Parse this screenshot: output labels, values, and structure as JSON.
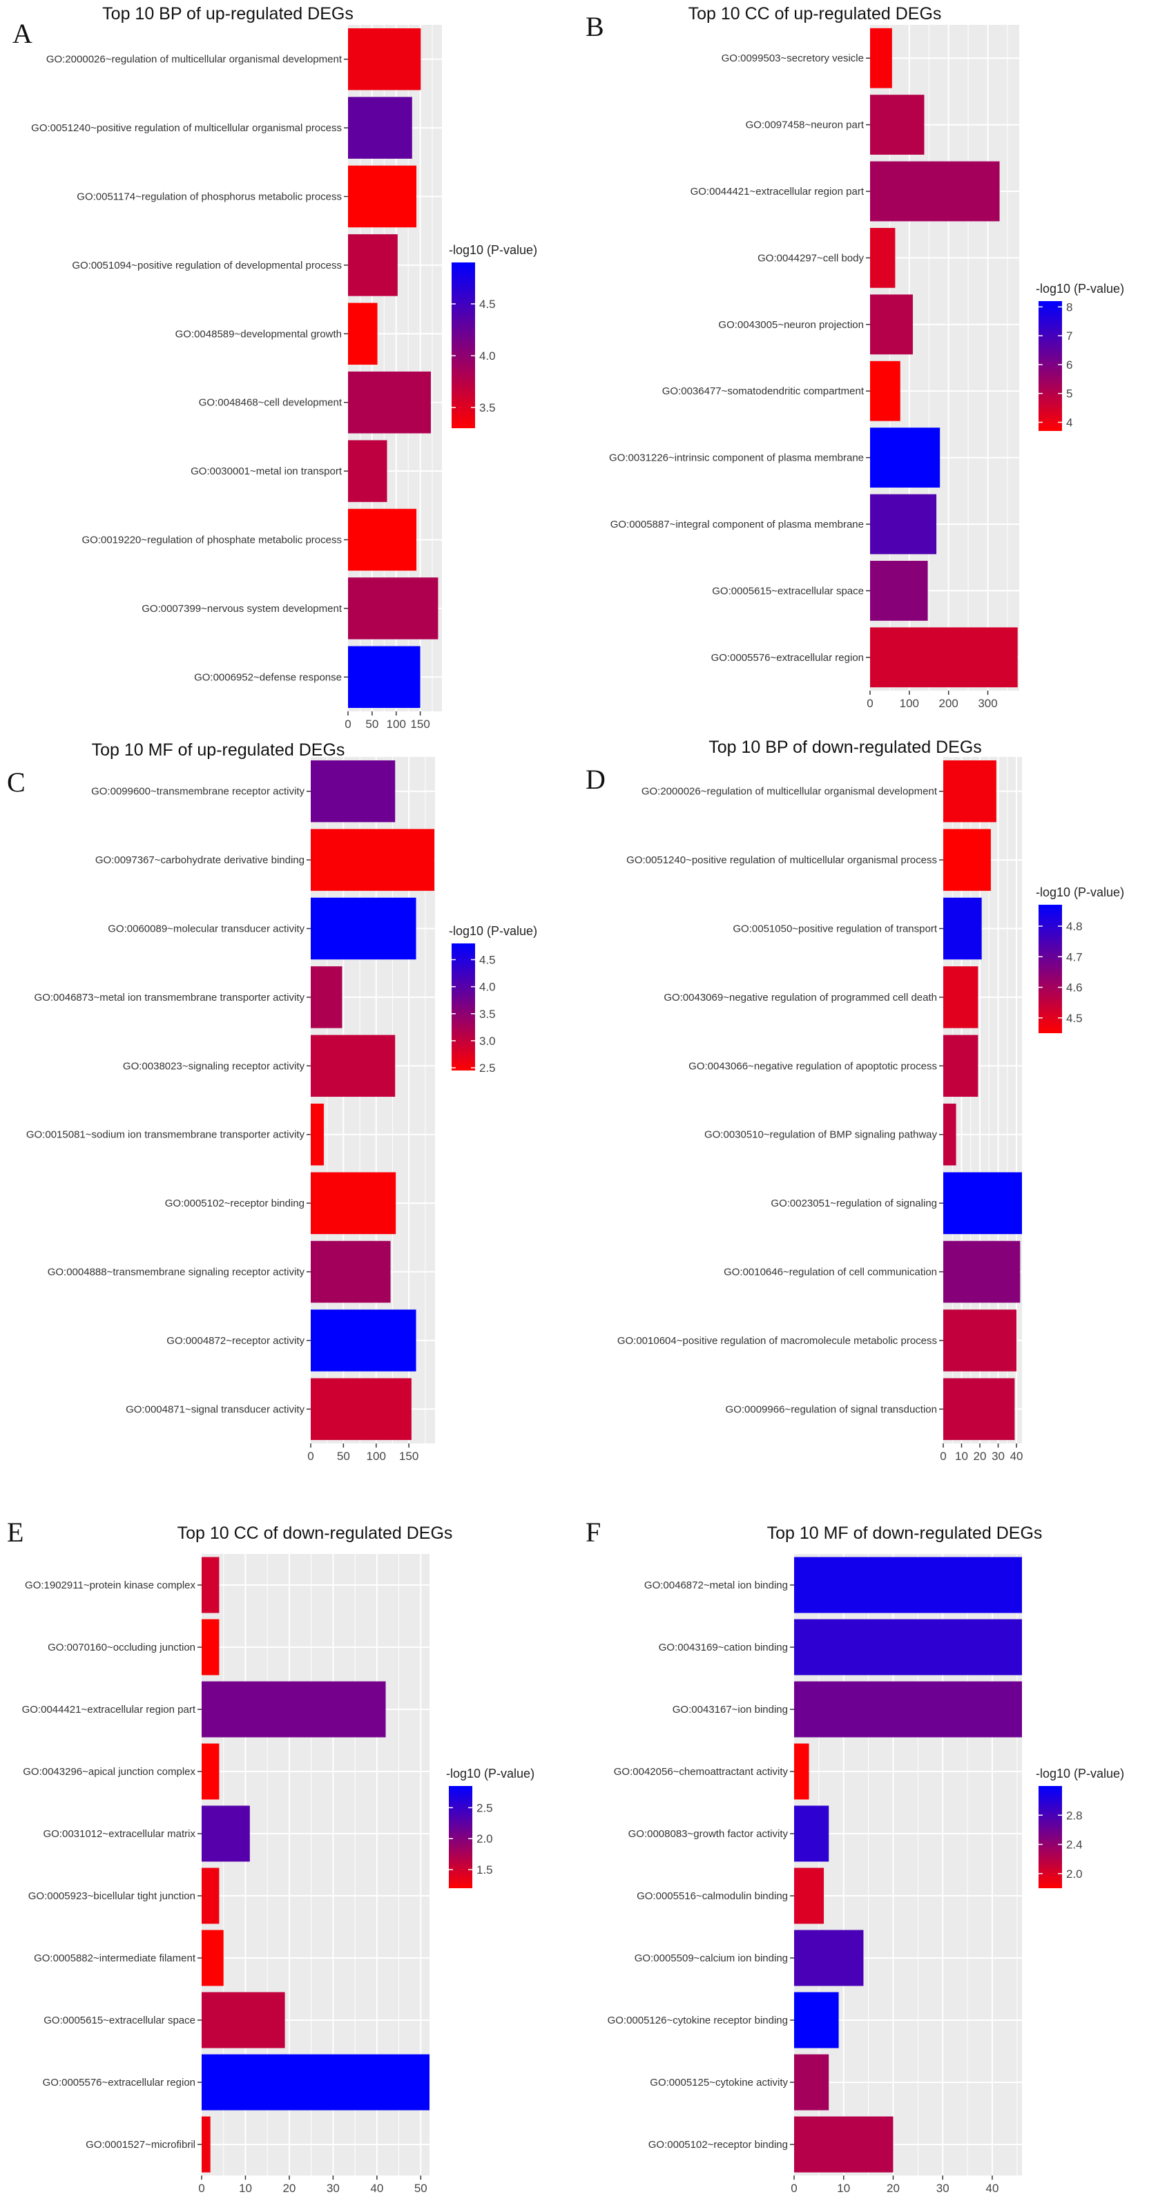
{
  "chart_data": [
    {
      "type": "bar",
      "orientation": "horizontal",
      "panel": "A",
      "title": "Top 10 BP of up-regulated DEGs",
      "legend_title": "-log10 (P-value)",
      "x_ticks": [
        0,
        50,
        100,
        150
      ],
      "xlim": [
        0,
        195
      ],
      "legend_ticks": [
        3.5,
        4.0,
        4.5
      ],
      "color_range": [
        3.3,
        4.9
      ],
      "low_color": "#ff0000",
      "high_color": "#0000ff",
      "bars": [
        {
          "term": "GO:2000026~regulation of multicellular organismal development",
          "count": 151,
          "neg_log10_p": 3.4
        },
        {
          "term": "GO:0051240~positive regulation of multicellular organismal process",
          "count": 133,
          "neg_log10_p": 4.3
        },
        {
          "term": "GO:0051174~regulation of phosphorus metabolic process",
          "count": 142,
          "neg_log10_p": 3.3
        },
        {
          "term": "GO:0051094~positive regulation of developmental process",
          "count": 103,
          "neg_log10_p": 3.7
        },
        {
          "term": "GO:0048589~developmental growth",
          "count": 61,
          "neg_log10_p": 3.3
        },
        {
          "term": "GO:0048468~cell development",
          "count": 172,
          "neg_log10_p": 3.8
        },
        {
          "term": "GO:0030001~metal ion transport",
          "count": 81,
          "neg_log10_p": 3.7
        },
        {
          "term": "GO:0019220~regulation of phosphate metabolic process",
          "count": 142,
          "neg_log10_p": 3.3
        },
        {
          "term": "GO:0007399~nervous system development",
          "count": 187,
          "neg_log10_p": 3.8
        },
        {
          "term": "GO:0006952~defense response",
          "count": 150,
          "neg_log10_p": 4.9
        }
      ]
    },
    {
      "type": "bar",
      "orientation": "horizontal",
      "panel": "B",
      "title": "Top 10 CC of up-regulated DEGs",
      "legend_title": "-log10 (P-value)",
      "x_ticks": [
        0,
        100,
        200,
        300
      ],
      "xlim": [
        0,
        380
      ],
      "legend_ticks": [
        4,
        5,
        6,
        7,
        8
      ],
      "color_range": [
        3.7,
        8.2
      ],
      "low_color": "#ff0000",
      "high_color": "#0000ff",
      "bars": [
        {
          "term": "GO:0099503~secretory vesicle",
          "count": 56,
          "neg_log10_p": 3.8
        },
        {
          "term": "GO:0097458~neuron part",
          "count": 138,
          "neg_log10_p": 5.0
        },
        {
          "term": "GO:0044421~extracellular region part",
          "count": 330,
          "neg_log10_p": 5.3
        },
        {
          "term": "GO:0044297~cell body",
          "count": 64,
          "neg_log10_p": 4.3
        },
        {
          "term": "GO:0043005~neuron projection",
          "count": 109,
          "neg_log10_p": 5.0
        },
        {
          "term": "GO:0036477~somatodendritic compartment",
          "count": 77,
          "neg_log10_p": 3.7
        },
        {
          "term": "GO:0031226~intrinsic component of plasma membrane",
          "count": 178,
          "neg_log10_p": 8.2
        },
        {
          "term": "GO:0005887~integral component of plasma membrane",
          "count": 169,
          "neg_log10_p": 6.8
        },
        {
          "term": "GO:0005615~extracellular space",
          "count": 147,
          "neg_log10_p": 5.8
        },
        {
          "term": "GO:0005576~extracellular region",
          "count": 376,
          "neg_log10_p": 4.5
        }
      ]
    },
    {
      "type": "bar",
      "orientation": "horizontal",
      "panel": "C",
      "title": "Top 10 MF of up-regulated DEGs",
      "legend_title": "-log10 (P-value)",
      "x_ticks": [
        0,
        50,
        100,
        150
      ],
      "xlim": [
        0,
        190
      ],
      "legend_ticks": [
        2.5,
        3.0,
        3.5,
        4.0,
        4.5
      ],
      "color_range": [
        2.45,
        4.8
      ],
      "low_color": "#ff0000",
      "high_color": "#0000ff",
      "bars": [
        {
          "term": "GO:0099600~transmembrane receptor activity",
          "count": 129,
          "neg_log10_p": 3.8
        },
        {
          "term": "GO:0097367~carbohydrate derivative binding",
          "count": 189,
          "neg_log10_p": 2.5
        },
        {
          "term": "GO:0060089~molecular transducer activity",
          "count": 161,
          "neg_log10_p": 4.8
        },
        {
          "term": "GO:0046873~metal ion transmembrane transporter activity",
          "count": 48,
          "neg_log10_p": 3.2
        },
        {
          "term": "GO:0038023~signaling receptor activity",
          "count": 129,
          "neg_log10_p": 3.0
        },
        {
          "term": "GO:0015081~sodium ion transmembrane transporter activity",
          "count": 20,
          "neg_log10_p": 2.5
        },
        {
          "term": "GO:0005102~receptor binding",
          "count": 130,
          "neg_log10_p": 2.5
        },
        {
          "term": "GO:0004888~transmembrane signaling receptor activity",
          "count": 122,
          "neg_log10_p": 3.3
        },
        {
          "term": "GO:0004872~receptor activity",
          "count": 161,
          "neg_log10_p": 4.8
        },
        {
          "term": "GO:0004871~signal transducer activity",
          "count": 154,
          "neg_log10_p": 2.9
        }
      ]
    },
    {
      "type": "bar",
      "orientation": "horizontal",
      "panel": "D",
      "title": "Top 10 BP of down-regulated DEGs",
      "legend_title": "-log10 (P-value)",
      "x_ticks": [
        0,
        10,
        20,
        30,
        40
      ],
      "xlim": [
        0,
        43
      ],
      "legend_ticks": [
        4.5,
        4.6,
        4.7,
        4.8
      ],
      "color_range": [
        4.45,
        4.87
      ],
      "low_color": "#ff0000",
      "high_color": "#0000ff",
      "bars": [
        {
          "term": "GO:2000026~regulation of multicellular organismal development",
          "count": 29,
          "neg_log10_p": 4.47
        },
        {
          "term": "GO:0051240~positive regulation of multicellular organismal process",
          "count": 26,
          "neg_log10_p": 4.45
        },
        {
          "term": "GO:0051050~positive regulation of transport",
          "count": 21,
          "neg_log10_p": 4.85
        },
        {
          "term": "GO:0043069~negative regulation of programmed cell death",
          "count": 19,
          "neg_log10_p": 4.5
        },
        {
          "term": "GO:0043066~negative regulation of apoptotic process",
          "count": 19,
          "neg_log10_p": 4.55
        },
        {
          "term": "GO:0030510~regulation of BMP signaling pathway",
          "count": 7,
          "neg_log10_p": 4.55
        },
        {
          "term": "GO:0023051~regulation of signaling",
          "count": 43,
          "neg_log10_p": 4.87
        },
        {
          "term": "GO:0010646~regulation of cell communication",
          "count": 42,
          "neg_log10_p": 4.65
        },
        {
          "term": "GO:0010604~positive regulation of macromolecule metabolic process",
          "count": 40,
          "neg_log10_p": 4.55
        },
        {
          "term": "GO:0009966~regulation of signal transduction",
          "count": 39,
          "neg_log10_p": 4.55
        }
      ]
    },
    {
      "type": "bar",
      "orientation": "horizontal",
      "panel": "E",
      "title": "Top 10 CC of down-regulated DEGs",
      "legend_title": "-log10 (P-value)",
      "x_ticks": [
        0,
        10,
        20,
        30,
        40,
        50
      ],
      "xlim": [
        0,
        52
      ],
      "legend_ticks": [
        1.5,
        2.0,
        2.5
      ],
      "color_range": [
        1.2,
        2.85
      ],
      "low_color": "#ff0000",
      "high_color": "#0000ff",
      "bars": [
        {
          "term": "GO:1902911~protein kinase complex",
          "count": 4,
          "neg_log10_p": 1.5
        },
        {
          "term": "GO:0070160~occluding junction",
          "count": 4,
          "neg_log10_p": 1.2
        },
        {
          "term": "GO:0044421~extracellular region part",
          "count": 42,
          "neg_log10_p": 2.1
        },
        {
          "term": "GO:0043296~apical junction complex",
          "count": 4,
          "neg_log10_p": 1.2
        },
        {
          "term": "GO:0031012~extracellular matrix",
          "count": 11,
          "neg_log10_p": 2.3
        },
        {
          "term": "GO:0005923~bicellular tight junction",
          "count": 4,
          "neg_log10_p": 1.3
        },
        {
          "term": "GO:0005882~intermediate filament",
          "count": 5,
          "neg_log10_p": 1.2
        },
        {
          "term": "GO:0005615~extracellular space",
          "count": 19,
          "neg_log10_p": 1.6
        },
        {
          "term": "GO:0005576~extracellular region",
          "count": 52,
          "neg_log10_p": 2.85
        },
        {
          "term": "GO:0001527~microfibril",
          "count": 2,
          "neg_log10_p": 1.3
        }
      ]
    },
    {
      "type": "bar",
      "orientation": "horizontal",
      "panel": "F",
      "title": "Top 10 MF of down-regulated DEGs",
      "legend_title": "-log10 (P-value)",
      "x_ticks": [
        0,
        10,
        20,
        30,
        40
      ],
      "xlim": [
        0,
        46
      ],
      "legend_ticks": [
        2.0,
        2.4,
        2.8
      ],
      "color_range": [
        1.8,
        3.2
      ],
      "low_color": "#ff0000",
      "high_color": "#0000ff",
      "bars": [
        {
          "term": "GO:0046872~metal ion binding",
          "count": 46,
          "neg_log10_p": 3.1
        },
        {
          "term": "GO:0043169~cation binding",
          "count": 46,
          "neg_log10_p": 2.95
        },
        {
          "term": "GO:0043167~ion binding",
          "count": 46,
          "neg_log10_p": 2.6
        },
        {
          "term": "GO:0042056~chemoattractant activity",
          "count": 3,
          "neg_log10_p": 1.8
        },
        {
          "term": "GO:0008083~growth factor activity",
          "count": 7,
          "neg_log10_p": 2.95
        },
        {
          "term": "GO:0005516~calmodulin binding",
          "count": 6,
          "neg_log10_p": 2.0
        },
        {
          "term": "GO:0005509~calcium ion binding",
          "count": 14,
          "neg_log10_p": 2.8
        },
        {
          "term": "GO:0005126~cytokine receptor binding",
          "count": 9,
          "neg_log10_p": 3.2
        },
        {
          "term": "GO:0005125~cytokine activity",
          "count": 7,
          "neg_log10_p": 2.3
        },
        {
          "term": "GO:0005102~receptor binding",
          "count": 20,
          "neg_log10_p": 2.2
        }
      ]
    }
  ]
}
